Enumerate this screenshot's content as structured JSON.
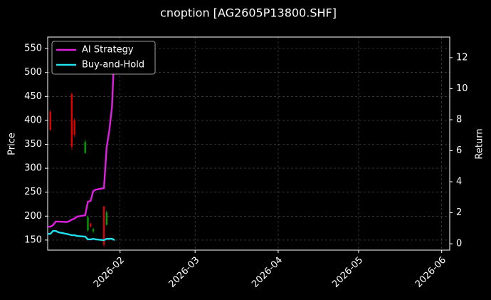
{
  "chart_data": {
    "type": "candlestick",
    "title": "cnoption [AG2605P13800.SHF]",
    "ylabel": "Price",
    "y2label": "Return",
    "xlim": [
      "2026-01-05",
      "2026-06-04"
    ],
    "xticks": [
      {
        "value": "2026-02-01",
        "label": "2026-02"
      },
      {
        "value": "2026-03-01",
        "label": "2026-03"
      },
      {
        "value": "2026-04-01",
        "label": "2026-04"
      },
      {
        "value": "2026-05-01",
        "label": "2026-05"
      },
      {
        "value": "2026-06-01",
        "label": "2026-06"
      }
    ],
    "ylim": [
      129,
      574
    ],
    "yticks": [
      150,
      200,
      250,
      300,
      350,
      400,
      450,
      500,
      550
    ],
    "y2lim": [
      -0.41,
      13.33
    ],
    "y2ticks": [
      0,
      2,
      4,
      6,
      8,
      10,
      12
    ],
    "grid": true,
    "legend": "upper-left",
    "candles": {
      "dates": [
        "2026-01-06",
        "2026-01-14",
        "2026-01-15",
        "2026-01-19",
        "2026-01-20",
        "2026-01-21",
        "2026-01-22",
        "2026-01-26",
        "2026-01-27"
      ],
      "open": [
        418,
        455,
        400,
        332,
        170,
        185,
        168,
        220,
        182
      ],
      "high": [
        422,
        458,
        405,
        360,
        200,
        186,
        176,
        222,
        212
      ],
      "low": [
        378,
        338,
        365,
        330,
        168,
        176,
        164,
        135,
        180
      ],
      "close": [
        380,
        345,
        370,
        355,
        198,
        178,
        173,
        140,
        208
      ],
      "up_color": "#00a000",
      "down_color": "#e00000"
    },
    "x": [
      "2026-01-05",
      "2026-01-06",
      "2026-01-07",
      "2026-01-08",
      "2026-01-09",
      "2026-01-12",
      "2026-01-13",
      "2026-01-14",
      "2026-01-15",
      "2026-01-16",
      "2026-01-19",
      "2026-01-20",
      "2026-01-21",
      "2026-01-22",
      "2026-01-23",
      "2026-01-26",
      "2026-01-27",
      "2026-01-28",
      "2026-01-29",
      "2026-01-30"
    ],
    "series": [
      {
        "name": "AI Strategy",
        "color": "#e020e0",
        "axis": "y2",
        "values": [
          1.1,
          1.1,
          1.2,
          1.43,
          1.43,
          1.4,
          1.45,
          1.56,
          1.62,
          1.75,
          1.84,
          2.71,
          2.76,
          3.4,
          3.49,
          3.59,
          6.21,
          7.31,
          8.83,
          13.0
        ]
      },
      {
        "name": "Buy-and-Hold",
        "color": "#20e0f0",
        "axis": "y2",
        "values": [
          0.64,
          0.64,
          0.83,
          0.83,
          0.74,
          0.64,
          0.6,
          0.55,
          0.55,
          0.5,
          0.46,
          0.28,
          0.28,
          0.32,
          0.28,
          0.23,
          0.32,
          0.32,
          0.32,
          0.23
        ]
      }
    ]
  }
}
